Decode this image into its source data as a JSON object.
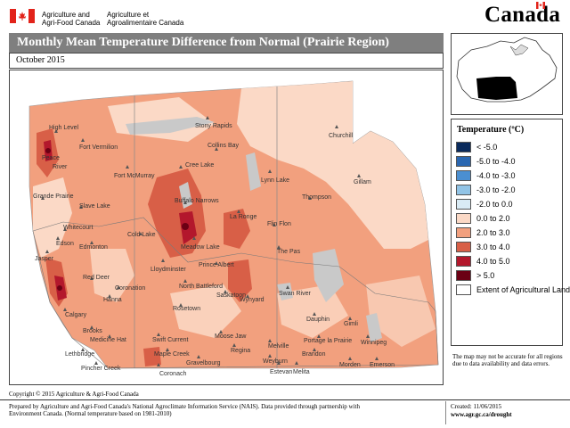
{
  "header": {
    "dept_en_line1": "Agriculture and",
    "dept_en_line2": "Agri-Food Canada",
    "dept_fr_line1": "Agriculture et",
    "dept_fr_line2": "Agroalimentaire Canada",
    "wordmark": "Canada",
    "flag_color": "#e2231a"
  },
  "title": "Monthly Mean Temperature Difference from Normal (Prairie Region)",
  "subtitle": "October 2015",
  "legend": {
    "title": "Temperature (ºC)",
    "items": [
      {
        "label": "< -5.0",
        "color": "#0a2a5c"
      },
      {
        "label": "-5.0 to -4.0",
        "color": "#2a67b1"
      },
      {
        "label": "-4.0 to -3.0",
        "color": "#4b8fd1"
      },
      {
        "label": "-3.0 to -2.0",
        "color": "#92c4e6"
      },
      {
        "label": "-2.0 to 0.0",
        "color": "#d9ebf5"
      },
      {
        "label": "0.0 to 2.0",
        "color": "#fbd9c6"
      },
      {
        "label": "2.0 to 3.0",
        "color": "#f2a07e"
      },
      {
        "label": "3.0 to 4.0",
        "color": "#d85f47"
      },
      {
        "label": "4.0 to 5.0",
        "color": "#b3172c"
      },
      {
        "label": "> 5.0",
        "color": "#6b0014"
      },
      {
        "label": "Extent of Agricultural Land",
        "color": "#ffffff"
      }
    ]
  },
  "map": {
    "cities": [
      "High Level",
      "Fort Vermilion",
      "Stony Rapids",
      "Churchill",
      "Collins Bay",
      "Cree Lake",
      "Fort McMurray",
      "Lynn Lake",
      "Gillam",
      "Grande Prairie",
      "Slave Lake",
      "Buffalo Narrows",
      "La Ronge",
      "Thompson",
      "Whitecourt",
      "Flin Flon",
      "Edson",
      "Edmonton",
      "Cold Lake",
      "Meadow Lake",
      "The Pas",
      "Jasper",
      "Lloydminster",
      "Prince Albert",
      "Red Deer",
      "North Battleford",
      "Swan River",
      "Coronation",
      "Hanna",
      "Saskatoon",
      "Wynyard",
      "Calgary",
      "Rosetown",
      "Dauphin",
      "Brooks",
      "Gimli",
      "Medicine Hat",
      "Swift Current",
      "Moose Jaw",
      "Melville",
      "Portage la Prairie",
      "Regina",
      "Winnipeg",
      "Lethbridge",
      "Maple Creek",
      "Brandon",
      "Pincher Creek",
      "Coronach",
      "Gravelbourg",
      "Weyburn",
      "Estevan",
      "Melita",
      "Morden",
      "Emerson",
      "River",
      "Peace"
    ]
  },
  "disclaimer": "The map may not be accurate for all regions due to data availability and data errors.",
  "copyright": "Copyright © 2015 Agriculture & Agri-Food Canada",
  "footer": {
    "prepared_line1": "Prepared by Agriculture and Agri-Food Canada's National Agroclimate Information Service (NAIS).   Data provided through partnership with",
    "prepared_line2": "Environment Canada. (Normal temperature based on 1981-2010)",
    "created": "Created: 11/06/2015",
    "url": "www.agr.gc.ca/drought"
  }
}
